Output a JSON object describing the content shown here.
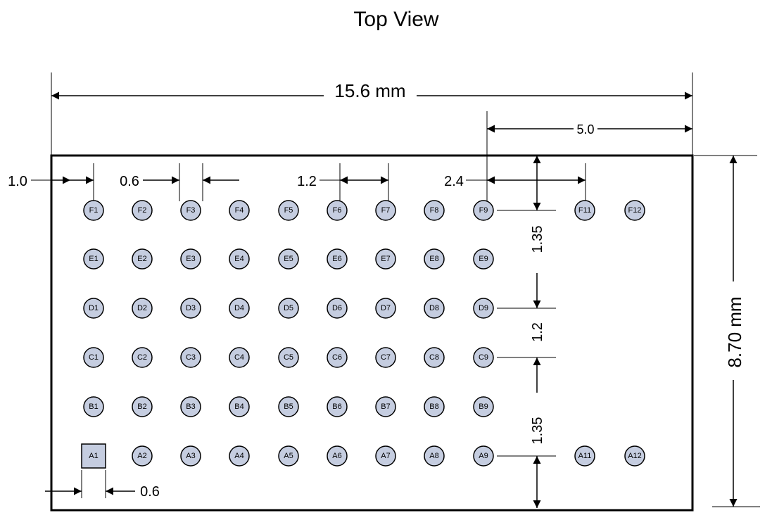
{
  "title": "Top View",
  "dimensions": {
    "width": "15.6 mm",
    "right_offset": "5.0",
    "height": "8.70 mm",
    "left_margin": "1.0",
    "pad_size_top": "0.6",
    "pitch": "1.2",
    "gap": "2.4",
    "top_row_offset": "1.35",
    "row_pitch": "1.2",
    "bottom_row_offset": "1.35",
    "pad_size_bottom": "0.6"
  },
  "pads": {
    "rows": [
      [
        "F1",
        "F2",
        "F3",
        "F4",
        "F5",
        "F6",
        "F7",
        "F8",
        "F9",
        "F11",
        "F12"
      ],
      [
        "E1",
        "E2",
        "E3",
        "E4",
        "E5",
        "E6",
        "E7",
        "E8",
        "E9"
      ],
      [
        "D1",
        "D2",
        "D3",
        "D4",
        "D5",
        "D6",
        "D7",
        "D8",
        "D9"
      ],
      [
        "C1",
        "C2",
        "C3",
        "C4",
        "C5",
        "C6",
        "C7",
        "C8",
        "C9"
      ],
      [
        "B1",
        "B2",
        "B3",
        "B4",
        "B5",
        "B6",
        "B7",
        "B8",
        "B9"
      ],
      [
        "A1",
        "A2",
        "A3",
        "A4",
        "A5",
        "A6",
        "A7",
        "A8",
        "A9",
        "A11",
        "A12"
      ]
    ],
    "square_pad": "A1"
  },
  "colors": {
    "pad_fill": "#c5cde0",
    "line": "#000000"
  }
}
